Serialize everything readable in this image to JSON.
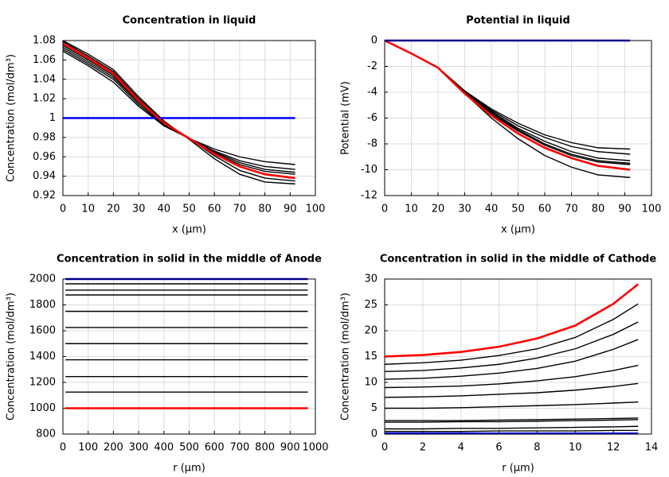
{
  "chart_data": [
    {
      "type": "line",
      "title": "Concentration in liquid",
      "xlabel": "x (μm)",
      "ylabel": "Concentration (mol/dm³)",
      "x": [
        0,
        10,
        20,
        30,
        40,
        50,
        60,
        70,
        80,
        92
      ],
      "series": [
        {
          "color": "#000000",
          "values": [
            1.069,
            1.054,
            1.037,
            1.012,
            0.992,
            0.979,
            0.968,
            0.96,
            0.955,
            0.952
          ]
        },
        {
          "color": "#000000",
          "values": [
            1.071,
            1.056,
            1.04,
            1.014,
            0.993,
            0.979,
            0.966,
            0.956,
            0.95,
            0.947
          ]
        },
        {
          "color": "#000000",
          "values": [
            1.073,
            1.058,
            1.042,
            1.016,
            0.994,
            0.979,
            0.965,
            0.954,
            0.947,
            0.944
          ]
        },
        {
          "color": "#000000",
          "values": [
            1.075,
            1.06,
            1.044,
            1.017,
            0.995,
            0.979,
            0.964,
            0.952,
            0.945,
            0.942
          ]
        },
        {
          "color": "#000000",
          "values": [
            1.079,
            1.064,
            1.048,
            1.02,
            0.996,
            0.979,
            0.961,
            0.946,
            0.938,
            0.935
          ]
        },
        {
          "color": "#000000",
          "values": [
            1.08,
            1.066,
            1.05,
            1.022,
            0.997,
            0.978,
            0.958,
            0.942,
            0.934,
            0.932
          ]
        },
        {
          "color": "#0000ff",
          "values": [
            1,
            1,
            1,
            1,
            1,
            1,
            1,
            1,
            1,
            1
          ]
        },
        {
          "color": "#ff0000",
          "values": [
            1.077,
            1.062,
            1.046,
            1.018,
            0.995,
            0.979,
            0.963,
            0.95,
            0.942,
            0.938
          ]
        }
      ],
      "xlim": [
        0,
        100
      ],
      "xticks": [
        0,
        10,
        20,
        30,
        40,
        50,
        60,
        70,
        80,
        90,
        100
      ],
      "ylim": [
        0.92,
        1.08
      ],
      "yticks": [
        0.92,
        0.94,
        0.96,
        0.98,
        1,
        1.02,
        1.04,
        1.06,
        1.08
      ],
      "grid": true
    },
    {
      "type": "line",
      "title": "Potential in liquid",
      "xlabel": "x (μm)",
      "ylabel": "Potential (mV)",
      "x": [
        0,
        10,
        20,
        30,
        40,
        50,
        60,
        70,
        80,
        92
      ],
      "series": [
        {
          "color": "#000000",
          "values": [
            0,
            -1.0,
            -2.1,
            -3.9,
            -5.3,
            -6.4,
            -7.3,
            -7.9,
            -8.3,
            -8.4
          ]
        },
        {
          "color": "#000000",
          "values": [
            0,
            -1.0,
            -2.1,
            -3.9,
            -5.4,
            -6.6,
            -7.5,
            -8.2,
            -8.6,
            -8.8
          ]
        },
        {
          "color": "#000000",
          "values": [
            0,
            -1.0,
            -2.1,
            -4.0,
            -5.5,
            -6.8,
            -7.8,
            -8.6,
            -9.1,
            -9.3
          ]
        },
        {
          "color": "#000000",
          "values": [
            0,
            -1.0,
            -2.1,
            -4.0,
            -5.6,
            -6.9,
            -8.0,
            -8.8,
            -9.3,
            -9.5
          ]
        },
        {
          "color": "#000000",
          "values": [
            0,
            -1.0,
            -2.1,
            -4.0,
            -5.7,
            -7.0,
            -8.1,
            -8.9,
            -9.4,
            -9.6
          ]
        },
        {
          "color": "#000000",
          "values": [
            0,
            -1.0,
            -2.1,
            -4.1,
            -6.0,
            -7.6,
            -8.9,
            -9.8,
            -10.4,
            -10.6
          ]
        },
        {
          "color": "#ff0000",
          "values": [
            0,
            -1.0,
            -2.1,
            -4.1,
            -5.8,
            -7.2,
            -8.3,
            -9.1,
            -9.7,
            -10.0
          ]
        },
        {
          "color": "#0000ff",
          "values": [
            0,
            0,
            0,
            0,
            0,
            0,
            0,
            0,
            0,
            0
          ]
        }
      ],
      "xlim": [
        0,
        100
      ],
      "xticks": [
        0,
        10,
        20,
        30,
        40,
        50,
        60,
        70,
        80,
        90,
        100
      ],
      "ylim": [
        -12,
        0
      ],
      "yticks": [
        -12,
        -10,
        -8,
        -6,
        -4,
        -2,
        0
      ],
      "grid": true
    },
    {
      "type": "line",
      "title": "Concentration in solid in the middle of Anode",
      "xlabel": "r (μm)",
      "ylabel": "Concentration (mol/dm³)",
      "x": [
        10,
        970
      ],
      "series": [
        {
          "color": "#000000",
          "values": [
            1125,
            1125
          ]
        },
        {
          "color": "#000000",
          "values": [
            1245,
            1245
          ]
        },
        {
          "color": "#000000",
          "values": [
            1375,
            1375
          ]
        },
        {
          "color": "#000000",
          "values": [
            1500,
            1500
          ]
        },
        {
          "color": "#000000",
          "values": [
            1625,
            1625
          ]
        },
        {
          "color": "#000000",
          "values": [
            1750,
            1750
          ]
        },
        {
          "color": "#000000",
          "values": [
            1877,
            1877
          ]
        },
        {
          "color": "#000000",
          "values": [
            1914,
            1914
          ]
        },
        {
          "color": "#000000",
          "values": [
            1963,
            1963
          ]
        },
        {
          "color": "#ff0000",
          "values": [
            1000,
            1000
          ]
        },
        {
          "color": "#0000ff",
          "values": [
            2000,
            2000
          ]
        }
      ],
      "xlim": [
        0,
        1000
      ],
      "xticks": [
        0,
        100,
        200,
        300,
        400,
        500,
        600,
        700,
        800,
        900,
        1000
      ],
      "ylim": [
        800,
        2000
      ],
      "yticks": [
        800,
        1000,
        1200,
        1400,
        1600,
        1800,
        2000
      ],
      "grid": true
    },
    {
      "type": "line",
      "title": "Concentration in solid in the middle of Cathode",
      "xlabel": "r (μm)",
      "ylabel": "Concentration (mol/dm³)",
      "x": [
        0,
        2,
        4,
        6,
        8,
        10,
        12,
        13.3
      ],
      "series": [
        {
          "color": "#000000",
          "values": [
            13.5,
            13.8,
            14.3,
            15.2,
            16.5,
            18.7,
            22.2,
            25.2
          ]
        },
        {
          "color": "#000000",
          "values": [
            12.1,
            12.3,
            12.8,
            13.5,
            14.7,
            16.5,
            19.3,
            21.7
          ]
        },
        {
          "color": "#000000",
          "values": [
            10.6,
            10.8,
            11.2,
            11.8,
            12.7,
            14.1,
            16.4,
            18.3
          ]
        },
        {
          "color": "#000000",
          "values": [
            9.0,
            9.1,
            9.3,
            9.7,
            10.3,
            11.1,
            12.3,
            13.3
          ]
        },
        {
          "color": "#000000",
          "values": [
            7.1,
            7.2,
            7.4,
            7.7,
            8.0,
            8.5,
            9.2,
            9.8
          ]
        },
        {
          "color": "#000000",
          "values": [
            5.0,
            5.0,
            5.1,
            5.3,
            5.5,
            5.7,
            6.0,
            6.2
          ]
        },
        {
          "color": "#000000",
          "values": [
            2.6,
            2.6,
            2.6,
            2.7,
            2.8,
            2.9,
            3.0,
            3.1
          ]
        },
        {
          "color": "#000000",
          "values": [
            2.3,
            2.3,
            2.4,
            2.4,
            2.5,
            2.6,
            2.7,
            2.8
          ]
        },
        {
          "color": "#000000",
          "values": [
            1.0,
            1.0,
            1.1,
            1.1,
            1.2,
            1.3,
            1.4,
            1.5
          ]
        },
        {
          "color": "#000000",
          "values": [
            0.5,
            0.5,
            0.5,
            0.6,
            0.6,
            0.6,
            0.7,
            0.7
          ]
        },
        {
          "color": "#0000ff",
          "values": [
            0.1,
            0.1,
            0.1,
            0.1,
            0.1,
            0.1,
            0.1,
            0.1
          ]
        },
        {
          "color": "#ff0000",
          "values": [
            15,
            15.3,
            15.9,
            16.9,
            18.5,
            21,
            25.2,
            29
          ]
        }
      ],
      "xlim": [
        0,
        14
      ],
      "xticks": [
        0,
        2,
        4,
        6,
        8,
        10,
        12,
        14
      ],
      "ylim": [
        0,
        30
      ],
      "yticks": [
        0,
        5,
        10,
        15,
        20,
        25,
        30
      ],
      "grid": true
    }
  ]
}
